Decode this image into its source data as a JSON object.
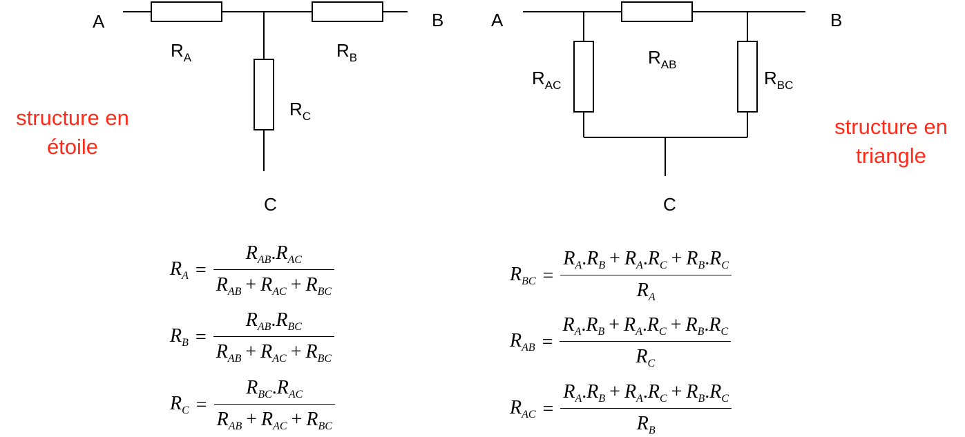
{
  "star": {
    "caption": [
      "structure en",
      "étoile"
    ],
    "node_a": "A",
    "node_b": "B",
    "node_c": "C",
    "resistors": [
      {
        "base": "R",
        "sub": "A"
      },
      {
        "base": "R",
        "sub": "B"
      },
      {
        "base": "R",
        "sub": "C"
      }
    ]
  },
  "triangle": {
    "caption": [
      "structure en",
      "triangle"
    ],
    "node_a": "A",
    "node_b": "B",
    "node_c": "C",
    "resistors": [
      {
        "base": "R",
        "sub": "AB"
      },
      {
        "base": "R",
        "sub": "AC"
      },
      {
        "base": "R",
        "sub": "BC"
      }
    ]
  },
  "formulas_star": [
    {
      "lhs": {
        "base": "R",
        "sub": "A"
      },
      "numerator": [
        [
          "R",
          "AB"
        ],
        ".",
        [
          "R",
          "AC"
        ]
      ],
      "denominator": [
        [
          "R",
          "AB"
        ],
        "+",
        [
          "R",
          "AC"
        ],
        "+",
        [
          "R",
          "BC"
        ]
      ]
    },
    {
      "lhs": {
        "base": "R",
        "sub": "B"
      },
      "numerator": [
        [
          "R",
          "AB"
        ],
        ".",
        [
          "R",
          "BC"
        ]
      ],
      "denominator": [
        [
          "R",
          "AB"
        ],
        "+",
        [
          "R",
          "AC"
        ],
        "+",
        [
          "R",
          "BC"
        ]
      ]
    },
    {
      "lhs": {
        "base": "R",
        "sub": "C"
      },
      "numerator": [
        [
          "R",
          "BC"
        ],
        ".",
        [
          "R",
          "AC"
        ]
      ],
      "denominator": [
        [
          "R",
          "AB"
        ],
        "+",
        [
          "R",
          "AC"
        ],
        "+",
        [
          "R",
          "BC"
        ]
      ]
    }
  ],
  "formulas_triangle": [
    {
      "lhs": {
        "base": "R",
        "sub": "BC"
      },
      "numerator": [
        [
          "R",
          "A"
        ],
        ".",
        [
          "R",
          "B"
        ],
        "+",
        [
          "R",
          "A"
        ],
        ".",
        [
          "R",
          "C"
        ],
        "+",
        [
          "R",
          "B"
        ],
        ".",
        [
          "R",
          "C"
        ]
      ],
      "denominator": [
        [
          "R",
          "A"
        ]
      ]
    },
    {
      "lhs": {
        "base": "R",
        "sub": "AB"
      },
      "numerator": [
        [
          "R",
          "A"
        ],
        ".",
        [
          "R",
          "B"
        ],
        "+",
        [
          "R",
          "A"
        ],
        ".",
        [
          "R",
          "C"
        ],
        "+",
        [
          "R",
          "B"
        ],
        ".",
        [
          "R",
          "C"
        ]
      ],
      "denominator": [
        [
          "R",
          "C"
        ]
      ]
    },
    {
      "lhs": {
        "base": "R",
        "sub": "AC"
      },
      "numerator": [
        [
          "R",
          "A"
        ],
        ".",
        [
          "R",
          "B"
        ],
        "+",
        [
          "R",
          "A"
        ],
        ".",
        [
          "R",
          "C"
        ],
        "+",
        [
          "R",
          "B"
        ],
        ".",
        [
          "R",
          "C"
        ]
      ],
      "denominator": [
        [
          "R",
          "B"
        ]
      ]
    }
  ],
  "equals_sign": "=",
  "colors": {
    "caption": "#ff2a1a",
    "wire": "#000000"
  }
}
